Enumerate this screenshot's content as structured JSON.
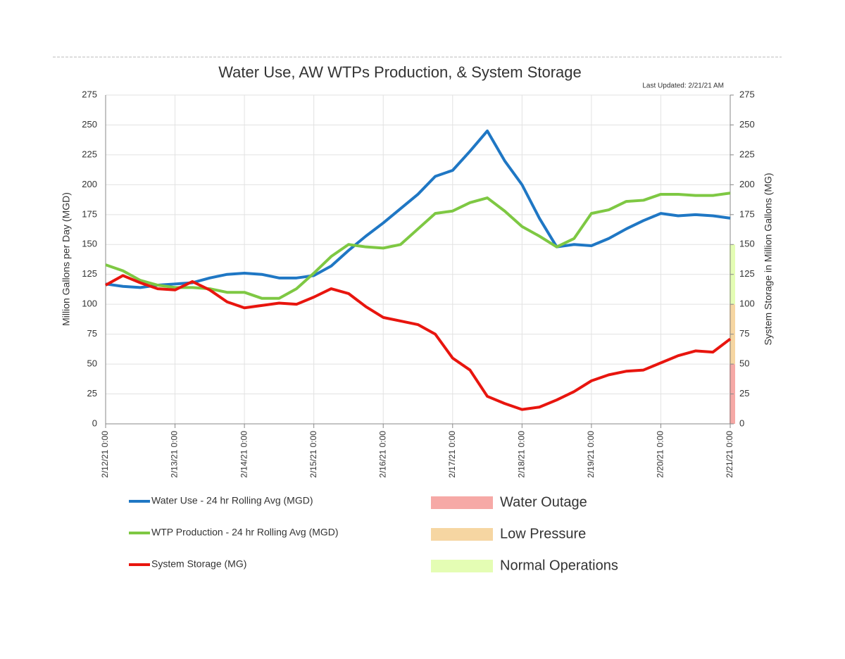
{
  "chart_data": {
    "type": "line",
    "title": "Water Use, AW WTPs Production, & System Storage",
    "annotation": "Last Updated: 2/21/21 AM",
    "y_label": "Million Gallons per Day (MGD)",
    "y2_label": "System Storage in Million Gallons (MG)",
    "x": [
      0,
      0.25,
      0.5,
      0.75,
      1,
      1.25,
      1.5,
      1.75,
      2,
      2.25,
      2.5,
      2.75,
      3,
      3.25,
      3.5,
      3.75,
      4,
      4.25,
      4.5,
      4.75,
      5,
      5.25,
      5.5,
      5.75,
      6,
      6.25,
      6.5,
      6.75,
      7,
      7.25,
      7.5,
      7.75,
      8,
      8.25,
      8.5,
      8.75,
      9
    ],
    "xlim": [
      0,
      9
    ],
    "xticks": [
      {
        "value": 0,
        "label": "2/12/21 0:00"
      },
      {
        "value": 1,
        "label": "2/13/21 0:00"
      },
      {
        "value": 2,
        "label": "2/14/21 0:00"
      },
      {
        "value": 3,
        "label": "2/15/21 0:00"
      },
      {
        "value": 4,
        "label": "2/16/21 0:00"
      },
      {
        "value": 5,
        "label": "2/17/21 0:00"
      },
      {
        "value": 6,
        "label": "2/18/21 0:00"
      },
      {
        "value": 7,
        "label": "2/19/21 0:00"
      },
      {
        "value": 8,
        "label": "2/20/21 0:00"
      },
      {
        "value": 9,
        "label": "2/21/21 0:00"
      }
    ],
    "ylim": [
      0,
      275
    ],
    "yticks": [
      0,
      25,
      50,
      75,
      100,
      125,
      150,
      175,
      200,
      225,
      250,
      275
    ],
    "y2lim": [
      0,
      275
    ],
    "y2ticks": [
      0,
      25,
      50,
      75,
      100,
      125,
      150,
      175,
      200,
      225,
      250,
      275
    ],
    "grid": true,
    "series": [
      {
        "name": "Water Use - 24 hr Rolling Avg (MGD)",
        "color": "#1f77c4",
        "values": [
          117,
          115,
          114,
          116,
          117,
          118,
          122,
          125,
          126,
          125,
          122,
          122,
          124,
          132,
          145,
          157,
          168,
          180,
          192,
          207,
          212,
          228,
          245,
          220,
          200,
          172,
          148,
          150,
          149,
          155,
          163,
          170,
          176,
          174,
          175,
          174,
          172
        ]
      },
      {
        "name": "WTP Production - 24 hr Rolling Avg (MGD)",
        "color": "#7ec843",
        "values": [
          133,
          128,
          120,
          116,
          114,
          114,
          113,
          110,
          110,
          105,
          105,
          113,
          126,
          140,
          150,
          148,
          147,
          150,
          163,
          176,
          178,
          185,
          189,
          178,
          165,
          157,
          148,
          155,
          176,
          179,
          186,
          187,
          192,
          192,
          191,
          191,
          193
        ]
      },
      {
        "name": "System Storage (MG)",
        "color": "#e8150e",
        "axis": "y2",
        "values": [
          116,
          124,
          118,
          113,
          112,
          119,
          112,
          102,
          97,
          99,
          101,
          100,
          106,
          113,
          109,
          98,
          89,
          86,
          83,
          75,
          55,
          45,
          23,
          17,
          12,
          14,
          20,
          27,
          36,
          41,
          44,
          45,
          51,
          57,
          61,
          60,
          71
        ]
      }
    ],
    "zones": [
      {
        "name": "Water Outage",
        "color": "#f6a9a6",
        "range": [
          0,
          50
        ]
      },
      {
        "name": "Low Pressure",
        "color": "#f6d6a2",
        "range": [
          50,
          100
        ]
      },
      {
        "name": "Normal Operations",
        "color": "#e4fdb4",
        "range": [
          100,
          150
        ]
      }
    ]
  }
}
